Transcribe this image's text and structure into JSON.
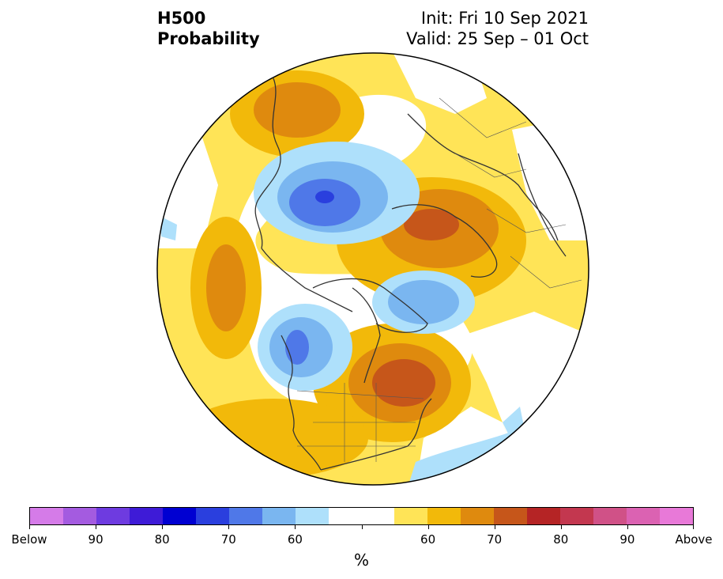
{
  "title": {
    "left_line1": "H500",
    "left_line2": "Probability",
    "init": "Init: Fri 10 Sep 2021",
    "valid": "Valid: 25 Sep – 01 Oct"
  },
  "colorbar": {
    "colors": [
      "#d57be8",
      "#a45be0",
      "#6e3be0",
      "#3e1bd7",
      "#0000d2",
      "#2a3fde",
      "#4f78e8",
      "#7ab6f0",
      "#aee0fb",
      "#ffffff",
      "#ffffff",
      "#ffe457",
      "#f2b90a",
      "#df8a0e",
      "#c6561a",
      "#b52425",
      "#c3374f",
      "#d05187",
      "#db62b2",
      "#e879d8"
    ],
    "labels": [
      "Below",
      "90",
      "80",
      "70",
      "60",
      "60",
      "70",
      "80",
      "90",
      "Above"
    ],
    "unit": "%"
  },
  "map": {
    "background_color": "#ffe457",
    "regions": [
      {
        "name": "neutral-region",
        "color": "#ffffff"
      },
      {
        "name": "above-60-region",
        "color": "#f2b90a"
      },
      {
        "name": "above-70-region",
        "color": "#df8a0e"
      },
      {
        "name": "above-80-region",
        "color": "#c6561a"
      },
      {
        "name": "below-55-region",
        "color": "#aee0fb"
      },
      {
        "name": "below-60-region",
        "color": "#7ab6f0"
      },
      {
        "name": "below-70-region",
        "color": "#4f78e8"
      },
      {
        "name": "below-80-region",
        "color": "#2a3fde"
      }
    ]
  }
}
